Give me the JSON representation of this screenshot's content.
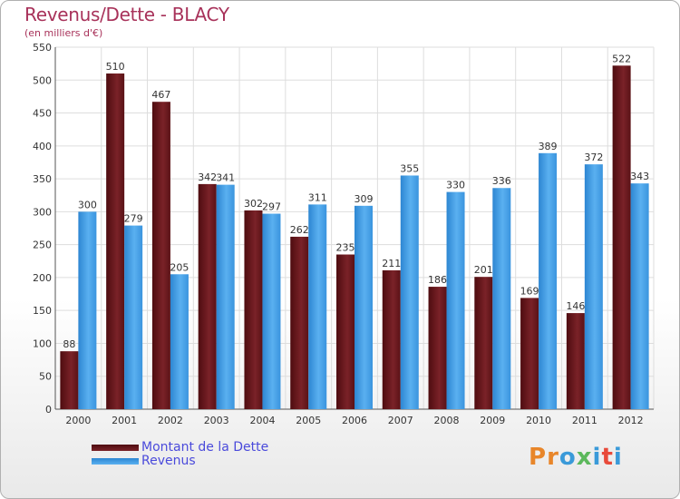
{
  "title": "Revenus/Dette - BLACY",
  "subtitle": "(en milliers d'€)",
  "logo": {
    "text": "Proxiti",
    "colors": [
      "#e8862a",
      "#e8862a",
      "#3a9ad9",
      "#5cb85c",
      "#3a9ad9",
      "#e84a3a",
      "#3a9ad9"
    ]
  },
  "colors": {
    "dette": "#6e1a1e",
    "revenus": "#3d9ae6",
    "title": "#a8325a",
    "legend_text": "#4a4adb"
  },
  "chart_data": {
    "type": "bar",
    "title": "Revenus/Dette - BLACY",
    "subtitle": "(en milliers d'€)",
    "categories": [
      "2000",
      "2001",
      "2002",
      "2003",
      "2004",
      "2005",
      "2006",
      "2007",
      "2008",
      "2009",
      "2010",
      "2011",
      "2012"
    ],
    "series": [
      {
        "name": "Montant de la Dette",
        "values": [
          88,
          510,
          467,
          342,
          302,
          262,
          235,
          211,
          186,
          201,
          169,
          146,
          522
        ]
      },
      {
        "name": "Revenus",
        "values": [
          300,
          279,
          205,
          341,
          297,
          311,
          309,
          355,
          330,
          336,
          389,
          372,
          343
        ]
      }
    ],
    "ylim": [
      0,
      550
    ],
    "yticks": [
      0,
      50,
      100,
      150,
      200,
      250,
      300,
      350,
      400,
      450,
      500,
      550
    ],
    "grid": true,
    "legend_position": "bottom-left"
  }
}
